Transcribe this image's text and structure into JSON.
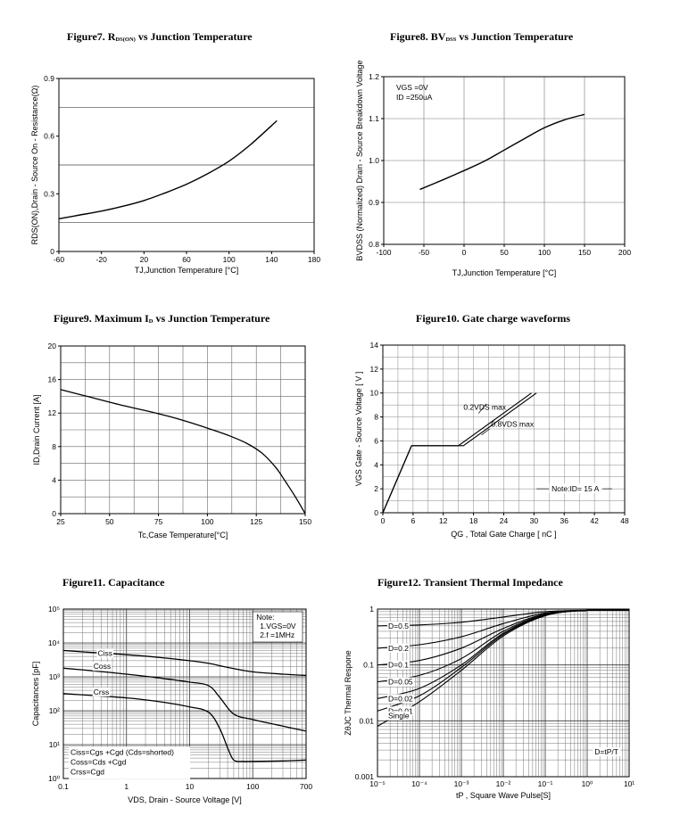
{
  "titles": {
    "fig7": {
      "prefix": "Figure7. ",
      "r": "R",
      "sub": "DS(ON)",
      "rest": " vs Junction Temperature"
    },
    "fig8": {
      "prefix": "Figure8. ",
      "r": "BV",
      "sub": "DSS",
      "rest": " vs Junction Temperature"
    },
    "fig9": {
      "prefix": "Figure9. ",
      "r": "Maximum I",
      "sub": "D",
      "rest": " vs Junction Temperature"
    },
    "fig10": "Figure10. Gate charge waveforms",
    "fig11": "Figure11. Capacitance",
    "fig12": "Figure12. Transient Thermal Impedance"
  },
  "chart_data": [
    {
      "id": "fig7",
      "type": "line",
      "title": "Figure7. RDS(ON) vs Junction Temperature",
      "xlabel": "TJ,Junction Temperature [°C]",
      "ylabel": "RDS(ON),Drain - Source On - Resistance(Ω)",
      "xlim": [
        -60,
        180
      ],
      "ylim": [
        0,
        0.9
      ],
      "xticks": [
        "-60",
        "-20",
        "20",
        "60",
        "100",
        "140",
        "180"
      ],
      "xtick_values": [
        -60,
        -20,
        20,
        60,
        100,
        140,
        180
      ],
      "yticks": [
        "0",
        "0.3",
        "0.6",
        "0.9"
      ],
      "ytick_values": [
        0,
        0.3,
        0.6,
        0.9
      ],
      "grid_y": [
        0.15,
        0.45,
        0.75
      ],
      "series": [
        {
          "name": "RDS(ON)",
          "x": [
            -60,
            -40,
            -20,
            0,
            20,
            40,
            60,
            80,
            100,
            120,
            145
          ],
          "y": [
            0.17,
            0.19,
            0.21,
            0.235,
            0.265,
            0.305,
            0.35,
            0.405,
            0.47,
            0.555,
            0.68
          ]
        }
      ]
    },
    {
      "id": "fig8",
      "type": "line",
      "title": "Figure8. BVDSS vs Junction Temperature",
      "xlabel": "TJ,Junction Temperature [°C]",
      "ylabel": "BVDSS (Normalized) Drain - Source Breakdown Voltage",
      "xlim": [
        -100,
        200
      ],
      "ylim": [
        0.8,
        1.2
      ],
      "xticks": [
        "-100",
        "-50",
        "0",
        "50",
        "100",
        "150",
        "200"
      ],
      "xtick_values": [
        -100,
        -50,
        0,
        50,
        100,
        150,
        200
      ],
      "yticks": [
        "0.8",
        "0.9",
        "1.0",
        "1.1",
        "1.2"
      ],
      "ytick_values": [
        0.8,
        0.9,
        1.0,
        1.1,
        1.2
      ],
      "annotations": [
        "VGS =0V",
        "ID =250uA"
      ],
      "series": [
        {
          "name": "BVDSS",
          "x": [
            -55,
            -25,
            0,
            25,
            50,
            75,
            100,
            125,
            150
          ],
          "y": [
            0.931,
            0.955,
            0.976,
            0.998,
            1.025,
            1.052,
            1.078,
            1.097,
            1.11
          ]
        }
      ]
    },
    {
      "id": "fig9",
      "type": "line",
      "title": "Figure9. Maximum ID vs Junction Temperature",
      "xlabel": "Tc,Case Temperature[°C]",
      "ylabel": "ID,Drain Current [A]",
      "xlim": [
        25,
        150
      ],
      "ylim": [
        0,
        20
      ],
      "xticks": [
        "25",
        "50",
        "75",
        "100",
        "125",
        "150"
      ],
      "xtick_values": [
        25,
        50,
        75,
        100,
        125,
        150
      ],
      "yticks": [
        "0",
        "4",
        "8",
        "12",
        "16",
        "20"
      ],
      "ytick_values": [
        0,
        4,
        8,
        12,
        16,
        20
      ],
      "series": [
        {
          "name": "ID",
          "x": [
            25,
            40,
            55,
            70,
            85,
            100,
            110,
            120,
            128,
            135,
            140,
            145,
            150
          ],
          "y": [
            14.8,
            13.9,
            13.0,
            12.2,
            11.3,
            10.2,
            9.4,
            8.4,
            7.2,
            5.5,
            3.8,
            2.0,
            0
          ]
        }
      ]
    },
    {
      "id": "fig10",
      "type": "line",
      "title": "Figure10. Gate charge waveforms",
      "xlabel": "QG , Total Gate Charge [ nC ]",
      "ylabel": "VGS Gate - Source Voltage [ V ]",
      "xlim": [
        0,
        48
      ],
      "ylim": [
        0,
        14
      ],
      "xticks": [
        "0",
        "6",
        "12",
        "18",
        "24",
        "30",
        "36",
        "42",
        "48"
      ],
      "xtick_values": [
        0,
        6,
        12,
        18,
        24,
        30,
        36,
        42,
        48
      ],
      "yticks": [
        "0",
        "2",
        "4",
        "6",
        "8",
        "10",
        "12",
        "14"
      ],
      "ytick_values": [
        0,
        2,
        4,
        6,
        8,
        10,
        12,
        14
      ],
      "annotations": [
        "0.2VDS max",
        "0.8VDS max",
        "Note:ID= 15  A"
      ],
      "series": [
        {
          "name": "0.2VDS max",
          "x": [
            0,
            5.7,
            15,
            29.5
          ],
          "y": [
            0,
            5.6,
            5.6,
            10
          ]
        },
        {
          "name": "0.8VDS max",
          "x": [
            0,
            5.7,
            16,
            30.5
          ],
          "y": [
            0,
            5.6,
            5.6,
            10
          ]
        }
      ]
    },
    {
      "id": "fig11",
      "type": "line",
      "title": "Figure11. Capacitance",
      "xlabel": "VDS, Drain - Source Voltage [V]",
      "ylabel": "Capacitances [pF]",
      "xscale": "log",
      "yscale": "log",
      "xlim": [
        0.1,
        700
      ],
      "ylim": [
        1,
        100000
      ],
      "xticks": [
        "0.1",
        "1",
        "10",
        "100",
        "700"
      ],
      "xtick_values": [
        0.1,
        1,
        10,
        100,
        700
      ],
      "yticks": [
        "10⁰",
        "10¹",
        "10²",
        "10³",
        "10⁴",
        "10⁵"
      ],
      "ytick_values": [
        1,
        10,
        100,
        1000,
        10000,
        100000
      ],
      "annotations": [
        "Note:",
        "1.VGS=0V",
        "2.f =1MHz",
        "Ciss=Cgs +Cgd (Cds=shorted)",
        "Coss=Cds +Cgd",
        "Crss=Cgd"
      ],
      "series": [
        {
          "name": "Ciss",
          "x": [
            0.1,
            0.3,
            1,
            3,
            10,
            20,
            40,
            100,
            300,
            700
          ],
          "y": [
            6000,
            5200,
            4500,
            3800,
            3000,
            2500,
            1900,
            1400,
            1200,
            1100
          ]
        },
        {
          "name": "Coss",
          "x": [
            0.1,
            0.3,
            1,
            3,
            10,
            20,
            30,
            50,
            100,
            300,
            700
          ],
          "y": [
            1800,
            1500,
            1200,
            950,
            700,
            550,
            250,
            80,
            55,
            35,
            25
          ]
        },
        {
          "name": "Crss",
          "x": [
            0.1,
            0.3,
            1,
            3,
            10,
            20,
            30,
            40,
            50,
            70,
            100,
            300,
            700
          ],
          "y": [
            320,
            280,
            240,
            190,
            130,
            90,
            30,
            8,
            3.5,
            3.2,
            3.2,
            3.3,
            3.5
          ]
        }
      ]
    },
    {
      "id": "fig12",
      "type": "line",
      "title": "Figure12. Transient Thermal Impedance",
      "xlabel": "tP , Square Wave Pulse[S]",
      "ylabel": "ZθJC Thermal Respone",
      "xscale": "log",
      "yscale": "log",
      "xlim": [
        1e-05,
        10
      ],
      "ylim": [
        0.001,
        1
      ],
      "xticks": [
        "10⁻⁵",
        "10⁻⁴",
        "10⁻³",
        "10⁻²",
        "10⁻¹",
        "10⁰",
        "10¹"
      ],
      "xtick_values": [
        1e-05,
        0.0001,
        0.001,
        0.01,
        0.1,
        1,
        10
      ],
      "yticks": [
        "0.001",
        "0.01",
        "0.1",
        "1"
      ],
      "ytick_values": [
        0.001,
        0.01,
        0.1,
        1
      ],
      "annotations": [
        "D=tP/T"
      ],
      "series": [
        {
          "name": "D=0.5",
          "x": [
            1e-05,
            0.0001,
            0.001,
            0.01,
            0.1,
            1,
            10
          ],
          "y": [
            0.5,
            0.52,
            0.58,
            0.72,
            0.9,
            0.95,
            0.95
          ]
        },
        {
          "name": "D=0.2",
          "x": [
            1e-05,
            0.0001,
            0.001,
            0.01,
            0.1,
            1,
            10
          ],
          "y": [
            0.2,
            0.23,
            0.32,
            0.55,
            0.85,
            0.95,
            0.95
          ]
        },
        {
          "name": "D=0.1",
          "x": [
            1e-05,
            0.0001,
            0.001,
            0.01,
            0.1,
            1,
            10
          ],
          "y": [
            0.1,
            0.12,
            0.2,
            0.45,
            0.82,
            0.95,
            0.95
          ]
        },
        {
          "name": "D=0.05",
          "x": [
            1e-05,
            0.0001,
            0.001,
            0.01,
            0.1,
            1,
            10
          ],
          "y": [
            0.05,
            0.065,
            0.13,
            0.4,
            0.8,
            0.95,
            0.95
          ]
        },
        {
          "name": "D=0.02",
          "x": [
            1e-05,
            0.0001,
            0.001,
            0.01,
            0.1,
            1,
            10
          ],
          "y": [
            0.025,
            0.038,
            0.1,
            0.37,
            0.78,
            0.95,
            0.95
          ]
        },
        {
          "name": "D=0.01",
          "x": [
            1e-05,
            0.0001,
            0.001,
            0.01,
            0.1,
            1,
            10
          ],
          "y": [
            0.015,
            0.028,
            0.09,
            0.35,
            0.77,
            0.95,
            0.95
          ]
        },
        {
          "name": "Single",
          "x": [
            1e-05,
            0.0001,
            0.001,
            0.01,
            0.1,
            1,
            10
          ],
          "y": [
            0.008,
            0.022,
            0.08,
            0.33,
            0.76,
            0.95,
            0.95
          ]
        }
      ]
    }
  ]
}
